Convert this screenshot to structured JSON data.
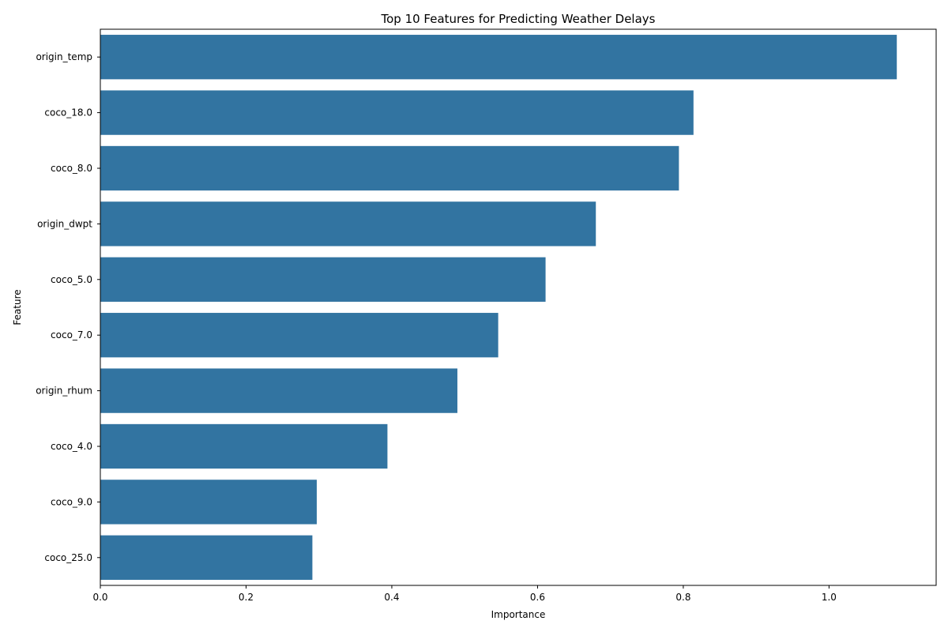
{
  "chart_data": {
    "type": "bar",
    "orientation": "horizontal",
    "title": "Top 10 Features for Predicting Weather Delays",
    "xlabel": "Importance",
    "ylabel": "Feature",
    "categories": [
      "origin_temp",
      "coco_18.0",
      "coco_8.0",
      "origin_dwpt",
      "coco_5.0",
      "coco_7.0",
      "origin_rhum",
      "coco_4.0",
      "coco_9.0",
      "coco_25.0"
    ],
    "values": [
      1.093,
      0.814,
      0.794,
      0.68,
      0.611,
      0.546,
      0.49,
      0.394,
      0.297,
      0.291
    ],
    "xlim": [
      0,
      1.147
    ],
    "xticks": [
      0.0,
      0.2,
      0.4,
      0.6,
      0.8,
      1.0
    ],
    "xtick_labels": [
      "0.0",
      "0.2",
      "0.4",
      "0.6",
      "0.8",
      "1.0"
    ],
    "bar_color": "#3274a1",
    "grid": false
  }
}
